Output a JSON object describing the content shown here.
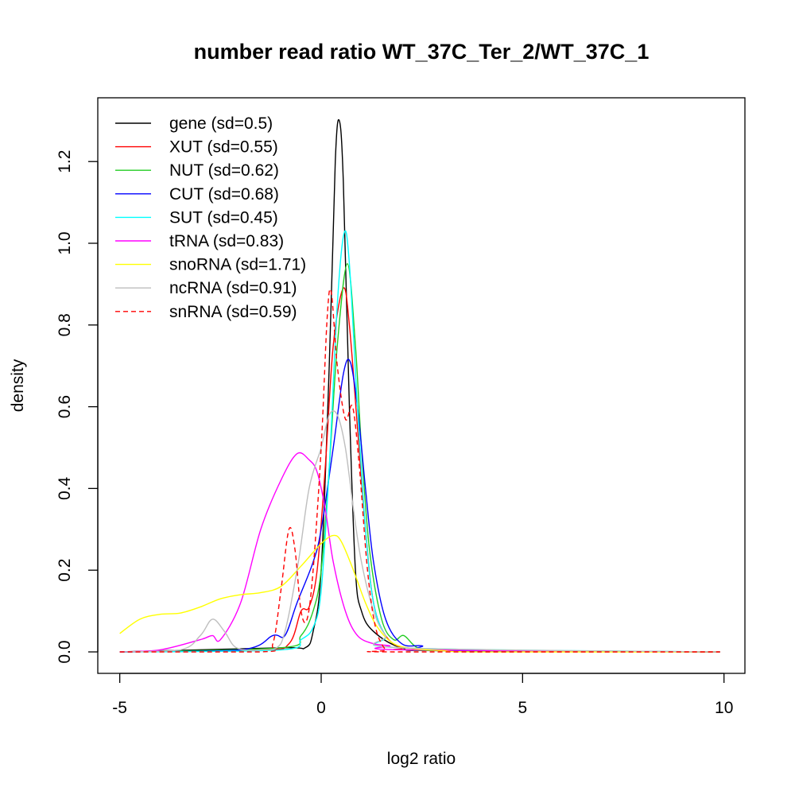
{
  "chart_data": {
    "type": "line",
    "title": "number read ratio WT_37C_Ter_2/WT_37C_1",
    "xlabel": "log2 ratio",
    "ylabel": "density",
    "xlim": [
      -5,
      10
    ],
    "ylim": [
      0,
      1.3
    ],
    "x_ticks": [
      -5,
      0,
      5,
      10
    ],
    "x_tick_labels": [
      "-5",
      "0",
      "5",
      "10"
    ],
    "y_ticks": [
      0,
      0.2,
      0.4,
      0.6,
      0.8,
      1.0,
      1.2
    ],
    "y_tick_labels": [
      "0.0",
      "0.2",
      "0.4",
      "0.6",
      "0.8",
      "1.0",
      "1.2"
    ],
    "legend_position": "top-left",
    "grid": false,
    "series": [
      {
        "name": "gene (sd=0.5)",
        "color": "#000000",
        "dash": false,
        "x": [
          -5,
          -1,
          -0.4,
          -0.2,
          0,
          0.2,
          0.35,
          0.45,
          0.55,
          0.7,
          0.85,
          1.0,
          1.3,
          2,
          3,
          9.9
        ],
        "y": [
          0,
          0.01,
          0.01,
          0.05,
          0.2,
          0.7,
          1.2,
          1.3,
          1.15,
          0.6,
          0.2,
          0.1,
          0.05,
          0.01,
          0.003,
          0
        ]
      },
      {
        "name": "XUT (sd=0.55)",
        "color": "#ff0000",
        "dash": false,
        "x": [
          -5,
          -1.5,
          -0.8,
          -0.5,
          -0.3,
          -0.1,
          0.1,
          0.3,
          0.55,
          0.7,
          0.9,
          1.1,
          1.3,
          1.6,
          2,
          2.5,
          9.9
        ],
        "y": [
          0,
          0.005,
          0.02,
          0.1,
          0.11,
          0.2,
          0.45,
          0.75,
          0.89,
          0.8,
          0.55,
          0.3,
          0.12,
          0.04,
          0.01,
          0.005,
          0
        ]
      },
      {
        "name": "NUT (sd=0.62)",
        "color": "#22cc22",
        "dash": false,
        "x": [
          -5,
          -1,
          -0.5,
          -0.2,
          0,
          0.2,
          0.4,
          0.65,
          0.85,
          1.0,
          1.2,
          1.5,
          1.8,
          2.05,
          2.4,
          3,
          9.9
        ],
        "y": [
          0,
          0.01,
          0.04,
          0.1,
          0.2,
          0.45,
          0.75,
          0.95,
          0.75,
          0.5,
          0.25,
          0.08,
          0.03,
          0.04,
          0.01,
          0.003,
          0
        ]
      },
      {
        "name": "CUT (sd=0.68)",
        "color": "#0000ff",
        "dash": false,
        "x": [
          -5,
          -2,
          -1.2,
          -0.9,
          -0.6,
          -0.2,
          0,
          0.3,
          0.55,
          0.72,
          0.9,
          1.1,
          1.3,
          1.6,
          2,
          2.5,
          3,
          9.9
        ],
        "y": [
          0,
          0.005,
          0.04,
          0.04,
          0.12,
          0.22,
          0.3,
          0.5,
          0.68,
          0.71,
          0.6,
          0.4,
          0.22,
          0.08,
          0.02,
          0.015,
          0.003,
          0
        ]
      },
      {
        "name": "SUT (sd=0.45)",
        "color": "#00ffff",
        "dash": false,
        "x": [
          -5,
          -1,
          -0.5,
          -0.2,
          0,
          0.2,
          0.4,
          0.57,
          0.7,
          0.9,
          1.1,
          1.3,
          1.6,
          2,
          9.9
        ],
        "y": [
          0,
          0.005,
          0.03,
          0.06,
          0.15,
          0.45,
          0.85,
          1.025,
          0.95,
          0.6,
          0.3,
          0.12,
          0.04,
          0.01,
          0
        ]
      },
      {
        "name": "tRNA (sd=0.83)",
        "color": "#ff00ff",
        "dash": false,
        "x": [
          -5,
          -4,
          -3,
          -2.7,
          -2.5,
          -2,
          -1.5,
          -1,
          -0.6,
          -0.3,
          -0.1,
          0.1,
          0.3,
          0.6,
          0.9,
          1.3,
          1.7,
          2,
          9.9
        ],
        "y": [
          0,
          0.005,
          0.03,
          0.04,
          0.03,
          0.12,
          0.3,
          0.42,
          0.485,
          0.47,
          0.44,
          0.35,
          0.22,
          0.1,
          0.04,
          0.02,
          0.015,
          0.005,
          0
        ]
      },
      {
        "name": "snoRNA (sd=1.71)",
        "color": "#ffff00",
        "dash": false,
        "x": [
          -5,
          -4.5,
          -4,
          -3.5,
          -3,
          -2.5,
          -2,
          -1.5,
          -1,
          -0.5,
          0,
          0.3,
          0.5,
          0.8,
          1.1,
          1.4,
          1.8,
          2.3,
          3,
          4,
          9.9
        ],
        "y": [
          0.045,
          0.08,
          0.092,
          0.095,
          0.11,
          0.13,
          0.14,
          0.145,
          0.16,
          0.21,
          0.265,
          0.285,
          0.27,
          0.2,
          0.12,
          0.06,
          0.02,
          0.008,
          0.003,
          0,
          0
        ]
      },
      {
        "name": "ncRNA (sd=0.91)",
        "color": "#bebebe",
        "dash": false,
        "x": [
          -5,
          -3.5,
          -3,
          -2.7,
          -2.4,
          -2.1,
          -1.5,
          -1,
          -0.6,
          -0.3,
          0,
          0.2,
          0.4,
          0.6,
          0.8,
          1,
          1.3,
          1.6,
          2,
          9.9
        ],
        "y": [
          0,
          0.005,
          0.04,
          0.08,
          0.05,
          0.01,
          0.005,
          0.02,
          0.2,
          0.4,
          0.5,
          0.58,
          0.58,
          0.5,
          0.35,
          0.22,
          0.1,
          0.04,
          0.01,
          0
        ]
      },
      {
        "name": "snRNA (sd=0.59)",
        "color": "#ff0000",
        "dash": true,
        "x": [
          -5,
          -1.5,
          -1.2,
          -1,
          -0.8,
          -0.65,
          -0.5,
          -0.35,
          -0.2,
          0,
          0.15,
          0.25,
          0.4,
          0.6,
          0.78,
          0.95,
          1.15,
          1.35,
          1.6,
          1.8,
          9.9
        ],
        "y": [
          0,
          0,
          0.02,
          0.15,
          0.3,
          0.25,
          0.1,
          0.08,
          0.2,
          0.5,
          0.82,
          0.88,
          0.7,
          0.57,
          0.6,
          0.45,
          0.2,
          0.06,
          0.005,
          0,
          0
        ]
      }
    ]
  }
}
